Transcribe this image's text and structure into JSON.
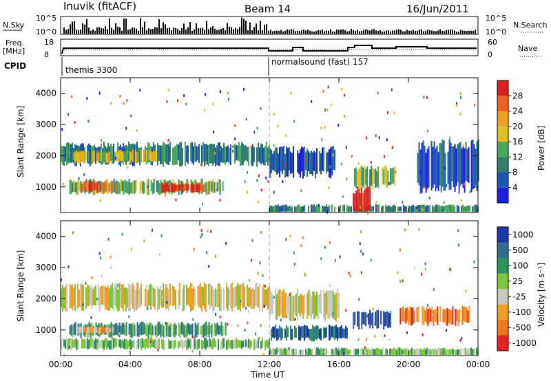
{
  "header": {
    "station": "Inuvik (fitACF)",
    "beam": "Beam 14",
    "date": "16/Jun/2011"
  },
  "top_panels": {
    "nsky_label": "N.Sky",
    "nsky_ticks": [
      "10^5",
      "10^0"
    ],
    "nsearch_label": "N.Search",
    "nsearch_ticks": [
      "10^5",
      "10^0"
    ],
    "freq_label": "Freq.",
    "freq_unit": "[MHz]",
    "freq_ticks": [
      "18",
      "8"
    ],
    "nave_label": "Nave",
    "nave_ticks": [
      "60",
      "0"
    ],
    "cpid_label": "CPID",
    "cpid_segments": [
      "themis 3300",
      "normalsound (fast) 157"
    ]
  },
  "colors": {
    "power_scale": [
      "#1f1fe0",
      "#1f56b4",
      "#2f7f6c",
      "#4aa85a",
      "#e0c020",
      "#f0a020",
      "#f06020",
      "#e02020"
    ],
    "velocity_scale": [
      "#1f3aa8",
      "#2f6f8f",
      "#2f9460",
      "#7cc83c",
      "#c8c8c0",
      "#f0a020",
      "#f07818",
      "#e82020"
    ],
    "grey": "#c8c8c0"
  },
  "chart_data": [
    {
      "type": "heatmap",
      "title": "",
      "ylabel": "Slant Range [km]",
      "xlabel": "",
      "x_ticks": [
        "00:00",
        "04:00",
        "08:00",
        "12:00",
        "16:00",
        "20:00",
        "00:00"
      ],
      "x_range_hours": [
        0,
        24
      ],
      "y_ticks": [
        1000,
        2000,
        3000,
        4000
      ],
      "ylim": [
        180,
        4500
      ],
      "colorbar_label": "Power [dB]",
      "colorbar_ticks": [
        "4",
        "8",
        "12",
        "16",
        "20",
        "24",
        "28"
      ],
      "bands": [
        {
          "t0": 0.0,
          "t1": 12.0,
          "r0": 1750,
          "r1": 2350,
          "level": 2
        },
        {
          "t0": 0.7,
          "t1": 5.5,
          "r0": 1800,
          "r1": 2150,
          "level": 4
        },
        {
          "t0": 0.5,
          "t1": 9.5,
          "r0": 800,
          "r1": 1200,
          "level": 3
        },
        {
          "t0": 1.2,
          "t1": 3.2,
          "r0": 850,
          "r1": 1150,
          "level": 6
        },
        {
          "t0": 5.8,
          "t1": 8.2,
          "r0": 850,
          "r1": 1100,
          "level": 7
        },
        {
          "t0": 12.0,
          "t1": 15.8,
          "r0": 1400,
          "r1": 2200,
          "level": 1
        },
        {
          "t0": 16.8,
          "t1": 19.2,
          "r0": 1000,
          "r1": 1600,
          "level": 3
        },
        {
          "t0": 20.5,
          "t1": 24.0,
          "r0": 1000,
          "r1": 2300,
          "level": 1
        },
        {
          "t0": 12.0,
          "t1": 24.0,
          "r0": 180,
          "r1": 400,
          "level": 2
        },
        {
          "t0": 16.8,
          "t1": 17.8,
          "r0": 180,
          "r1": 900,
          "level": 7
        }
      ],
      "unit": "hours / km"
    },
    {
      "type": "heatmap",
      "title": "",
      "ylabel": "Slant Range [km]",
      "xlabel": "Time UT",
      "x_ticks": [
        "00:00",
        "04:00",
        "08:00",
        "12:00",
        "16:00",
        "20:00",
        "00:00"
      ],
      "x_range_hours": [
        0,
        24
      ],
      "y_ticks": [
        1000,
        2000,
        3000,
        4000
      ],
      "ylim": [
        180,
        4500
      ],
      "colorbar_label": "Velocity [m s⁻¹]",
      "colorbar_ticks": [
        "1000",
        "500",
        "100",
        "25",
        "-25",
        "-100",
        "-500",
        "-1000"
      ],
      "bands": [
        {
          "t0": 0.0,
          "t1": 12.0,
          "r0": 1700,
          "r1": 2400,
          "level": 4
        },
        {
          "t0": 0.5,
          "t1": 9.5,
          "r0": 800,
          "r1": 1200,
          "level": 2
        },
        {
          "t0": 1.0,
          "t1": 3.0,
          "r0": 900,
          "r1": 1100,
          "level": 5
        },
        {
          "t0": 0.0,
          "t1": 12.0,
          "r0": 400,
          "r1": 700,
          "level": 3
        },
        {
          "t0": 12.0,
          "t1": 16.0,
          "r0": 1400,
          "r1": 2200,
          "level": 4
        },
        {
          "t0": 16.8,
          "t1": 19.0,
          "r0": 1100,
          "r1": 1600,
          "level": 0
        },
        {
          "t0": 19.5,
          "t1": 23.5,
          "r0": 1200,
          "r1": 1700,
          "level": 6
        },
        {
          "t0": 12.0,
          "t1": 24.0,
          "r0": 180,
          "r1": 400,
          "level": 3
        },
        {
          "t0": 12.0,
          "t1": 16.5,
          "r0": 700,
          "r1": 1100,
          "level": 1
        }
      ],
      "unit": "hours / km"
    }
  ]
}
